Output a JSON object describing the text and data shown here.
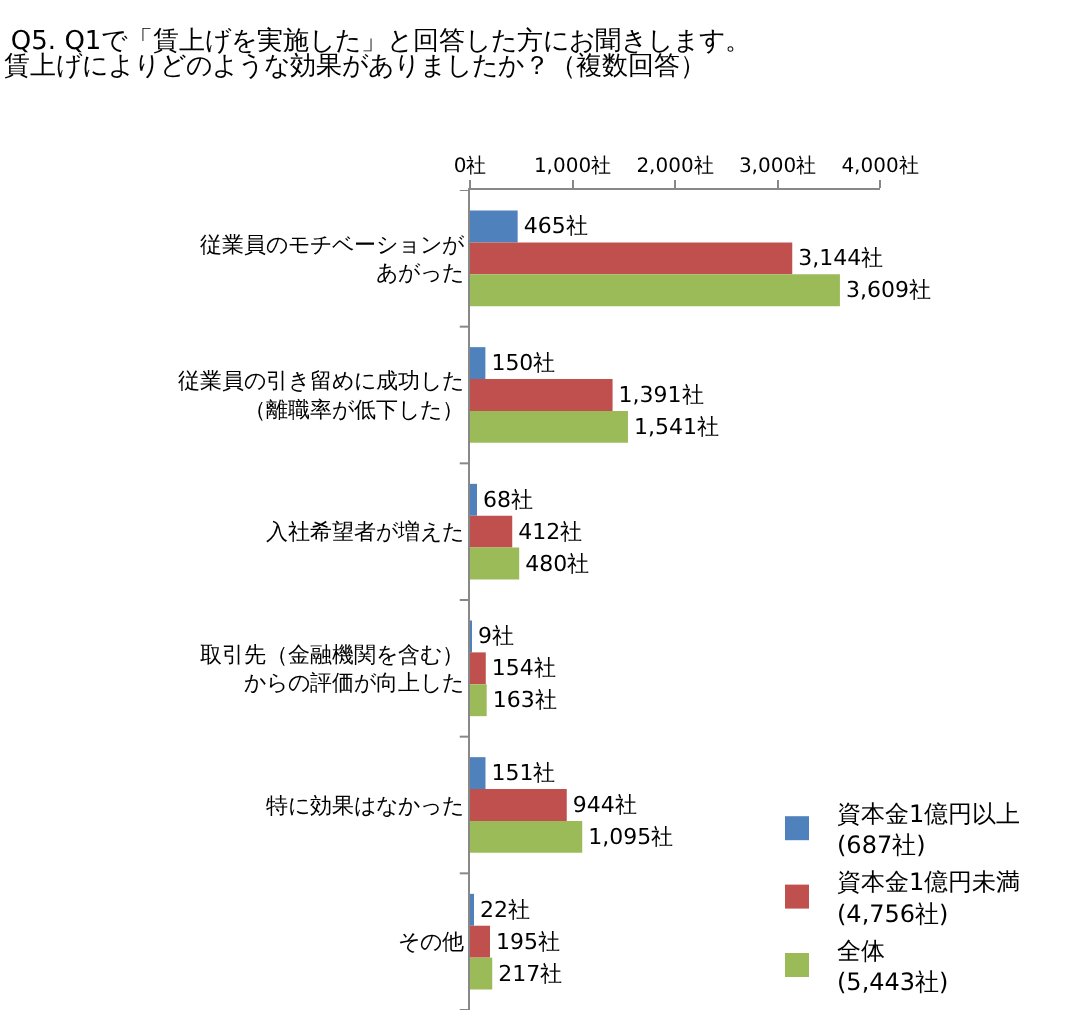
{
  "chart_data": {
    "type": "bar",
    "orientation": "horizontal",
    "title": "Q5. Q1で「賃上げを実施した」と回答した方にお聞きします。",
    "subtitle": "賃上げによりどのような効果がありましたか？（複数回答）",
    "categories": [
      "従業員のモチベーションがあがった",
      "従業員の引き留めに成功した（離職率が低下した）",
      "入社希望者が増えた",
      "取引先（金融機関を含む）からの評価が向上した",
      "特に効果はなかった",
      "その他"
    ],
    "series": [
      {
        "name": "資本金1億円以上\n(687社)",
        "color": "#4f81bd",
        "values": [
          465,
          150,
          68,
          9,
          151,
          22
        ],
        "value_labels": [
          "465社",
          "150社",
          "68社",
          "9社",
          "151社",
          "22社"
        ]
      },
      {
        "name": "資本金1億円未満\n(4,756社)",
        "color": "#c0504d",
        "values": [
          3144,
          1391,
          412,
          154,
          944,
          195
        ],
        "value_labels": [
          "3,144社",
          "1,391社",
          "412社",
          "154社",
          "944社",
          "195社"
        ]
      },
      {
        "name": "全体\n(5,443社)",
        "color": "#9bbb59",
        "values": [
          3609,
          1541,
          480,
          163,
          1095,
          217
        ],
        "value_labels": [
          "3,609社",
          "1,541社",
          "480社",
          "163社",
          "1,095社",
          "217社"
        ]
      }
    ],
    "xlim": [
      0,
      4000
    ],
    "xticks": [
      {
        "value": 0,
        "label": "0社"
      },
      {
        "value": 1000,
        "label": "1,000社"
      },
      {
        "value": 2000,
        "label": "2,000社"
      },
      {
        "value": 3000,
        "label": "3,000社"
      },
      {
        "value": 4000,
        "label": "4,000社"
      }
    ],
    "grid": false,
    "legend": "bottom right"
  }
}
